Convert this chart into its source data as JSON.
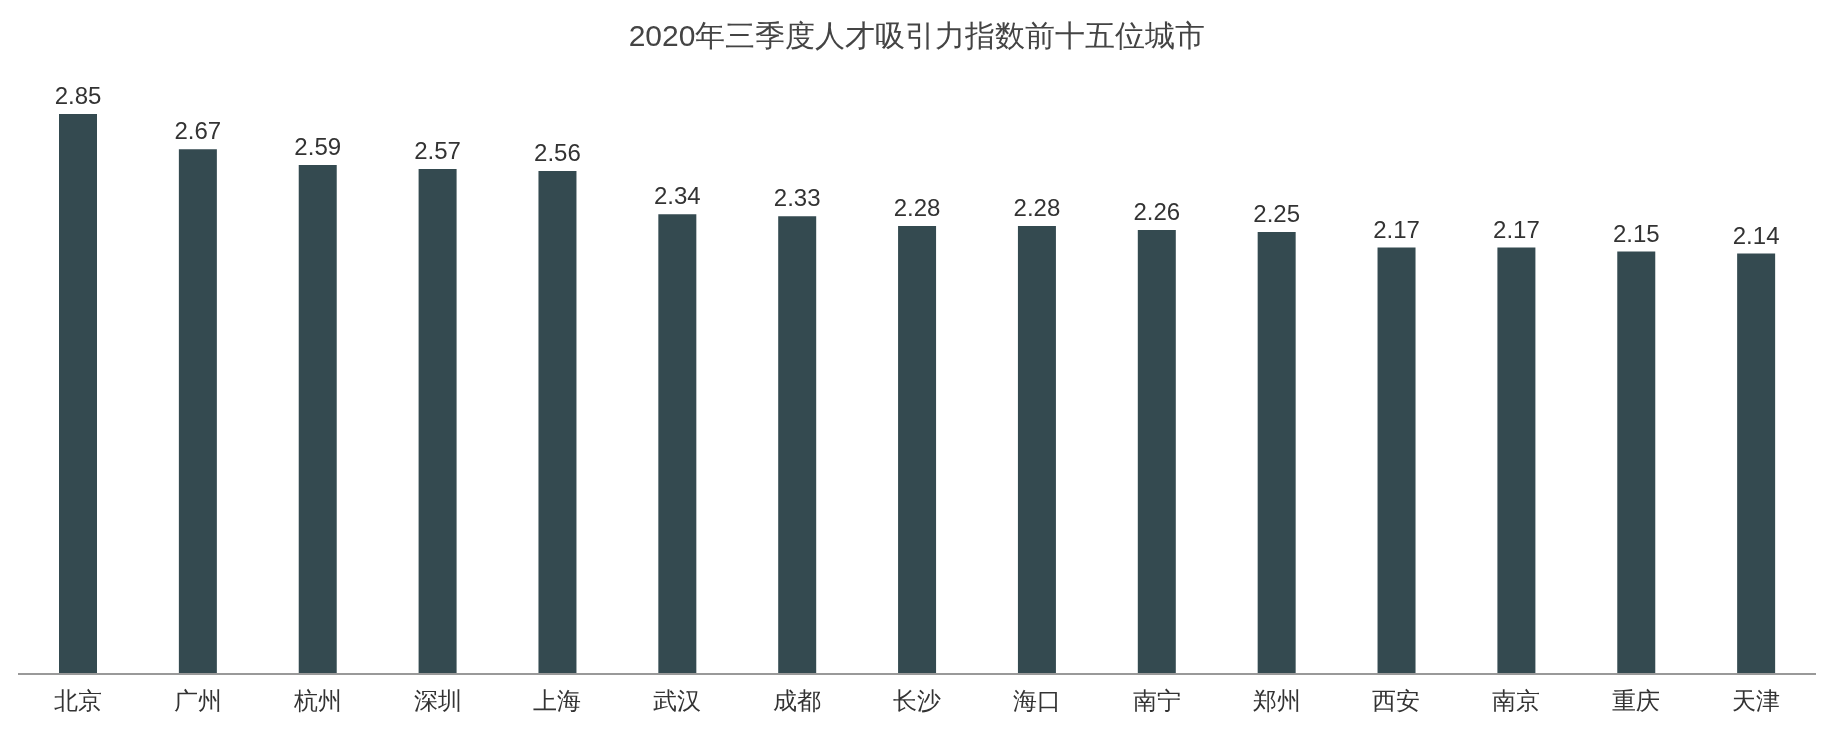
{
  "chart_data": {
    "type": "bar",
    "title": "2020年三季度人才吸引力指数前十五位城市",
    "categories": [
      "北京",
      "广州",
      "杭州",
      "深圳",
      "上海",
      "武汉",
      "成都",
      "长沙",
      "海口",
      "南宁",
      "郑州",
      "西安",
      "南京",
      "重庆",
      "天津"
    ],
    "values": [
      2.85,
      2.67,
      2.59,
      2.57,
      2.56,
      2.34,
      2.33,
      2.28,
      2.28,
      2.26,
      2.25,
      2.17,
      2.17,
      2.15,
      2.14
    ],
    "color": "#344a50",
    "data_labels": true
  }
}
